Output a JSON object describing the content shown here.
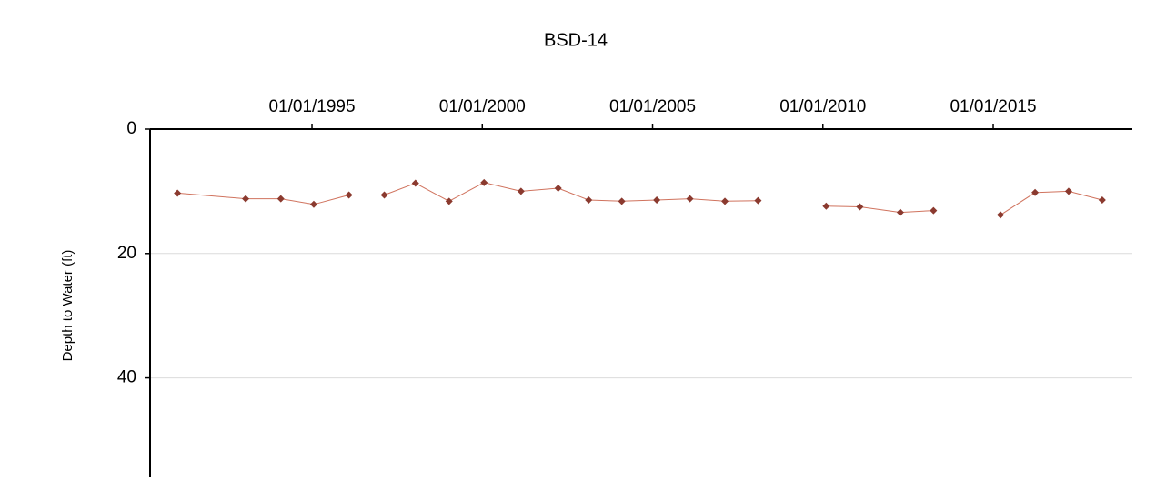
{
  "chart_data": {
    "type": "line",
    "title": "BSD-14",
    "y_label": "Depth to Water (ft)",
    "x": [
      "1991-01-20",
      "1993-01-20",
      "1994-02-01",
      "1995-01-20",
      "1996-02-01",
      "1997-02-15",
      "1998-01-15",
      "1999-01-10",
      "2000-01-20",
      "2001-02-20",
      "2002-03-25",
      "2003-02-15",
      "2004-02-05",
      "2005-02-15",
      "2006-02-05",
      "2007-02-15",
      "2008-02-05",
      "2009-02-01",
      "2010-02-05",
      "2011-02-01",
      "2012-04-10",
      "2013-04-01",
      "2014-03-15",
      "2015-03-20",
      "2016-03-25",
      "2017-03-20",
      "2018-03-15"
    ],
    "series": [
      {
        "name": "BSD-14",
        "color": "#8b3a2f",
        "values": [
          10.3,
          11.2,
          11.2,
          12.1,
          10.6,
          10.6,
          8.7,
          11.6,
          8.6,
          10.0,
          9.5,
          11.4,
          11.6,
          11.4,
          11.2,
          11.6,
          11.5,
          null,
          12.4,
          12.5,
          13.4,
          13.1,
          null,
          13.8,
          10.2,
          10.0,
          11.4
        ]
      }
    ],
    "xlim": [
      "1990-04-01",
      "2019-02-01"
    ],
    "xticks": [
      {
        "value": "1995-01-01",
        "label": "01/01/1995"
      },
      {
        "value": "2000-01-01",
        "label": "01/01/2000"
      },
      {
        "value": "2005-01-01",
        "label": "01/01/2005"
      },
      {
        "value": "2010-01-01",
        "label": "01/01/2010"
      },
      {
        "value": "2015-01-01",
        "label": "01/01/2015"
      }
    ],
    "ylim": [
      0,
      56
    ],
    "yticks": [
      0,
      20,
      40
    ],
    "y_inverted": true,
    "x_axis_position": "top",
    "grid": true
  }
}
